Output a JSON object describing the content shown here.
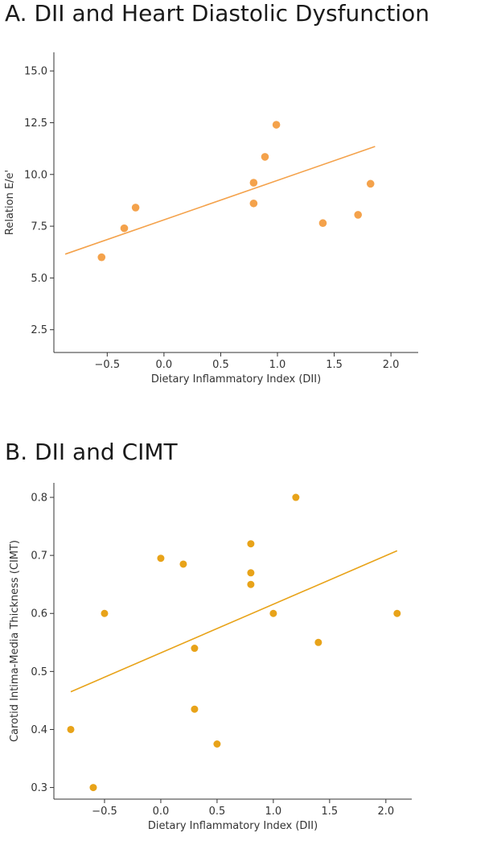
{
  "panels": [
    {
      "title": "A. DII and Heart Diastolic Dysfunction"
    },
    {
      "title": "B. DII and CIMT"
    }
  ],
  "chart_data": [
    {
      "type": "scatter",
      "title": "A. DII and Heart Diastolic Dysfunction",
      "xlabel": "Dietary Inflammatory Index (DII)",
      "ylabel": "Relation E/e'",
      "xlim": [
        -0.97,
        2.24
      ],
      "ylim": [
        1.4,
        15.9
      ],
      "xticks": [
        -0.5,
        0.0,
        0.5,
        1.0,
        1.5,
        2.0
      ],
      "xtick_labels": [
        "−0.5",
        "0.0",
        "0.5",
        "1.0",
        "1.5",
        "2.0"
      ],
      "yticks": [
        2.5,
        5.0,
        7.5,
        10.0,
        12.5,
        15.0
      ],
      "ytick_labels": [
        "2.5",
        "5.0",
        "7.5",
        "10.0",
        "12.5",
        "15.0"
      ],
      "grid": false,
      "color": "#f4a24b",
      "trendline": {
        "x": [
          -0.87,
          1.86
        ],
        "y": [
          6.15,
          11.35
        ]
      },
      "series": [
        {
          "x": [
            -0.55,
            -0.35,
            -0.25,
            0.79,
            0.79,
            0.89,
            0.99,
            1.4,
            1.71,
            1.82
          ],
          "y": [
            6.0,
            7.4,
            8.4,
            9.6,
            8.6,
            10.85,
            12.4,
            7.65,
            8.05,
            9.55
          ]
        }
      ]
    },
    {
      "type": "scatter",
      "title": "B. DII and CIMT",
      "xlabel": "Dietary Inflammatory Index (DII)",
      "ylabel": "Carotid Intima-Media Thickness (CIMT)",
      "xlim": [
        -0.95,
        2.23
      ],
      "ylim": [
        0.28,
        0.825
      ],
      "xticks": [
        -0.5,
        0.0,
        0.5,
        1.0,
        1.5,
        2.0
      ],
      "xtick_labels": [
        "−0.5",
        "0.0",
        "0.5",
        "1.0",
        "1.5",
        "2.0"
      ],
      "yticks": [
        0.3,
        0.4,
        0.5,
        0.6,
        0.7,
        0.8
      ],
      "ytick_labels": [
        "0.3",
        "0.4",
        "0.5",
        "0.6",
        "0.7",
        "0.8"
      ],
      "grid": false,
      "color": "#e8a319",
      "trendline": {
        "x": [
          -0.8,
          2.1
        ],
        "y": [
          0.465,
          0.708
        ]
      },
      "series": [
        {
          "x": [
            -0.8,
            -0.6,
            -0.5,
            0.0,
            0.2,
            0.3,
            0.3,
            0.5,
            0.8,
            0.8,
            0.8,
            1.0,
            1.2,
            1.4,
            2.1
          ],
          "y": [
            0.4,
            0.3,
            0.6,
            0.695,
            0.685,
            0.54,
            0.435,
            0.375,
            0.72,
            0.67,
            0.65,
            0.6,
            0.8,
            0.55,
            0.6
          ]
        }
      ]
    }
  ]
}
